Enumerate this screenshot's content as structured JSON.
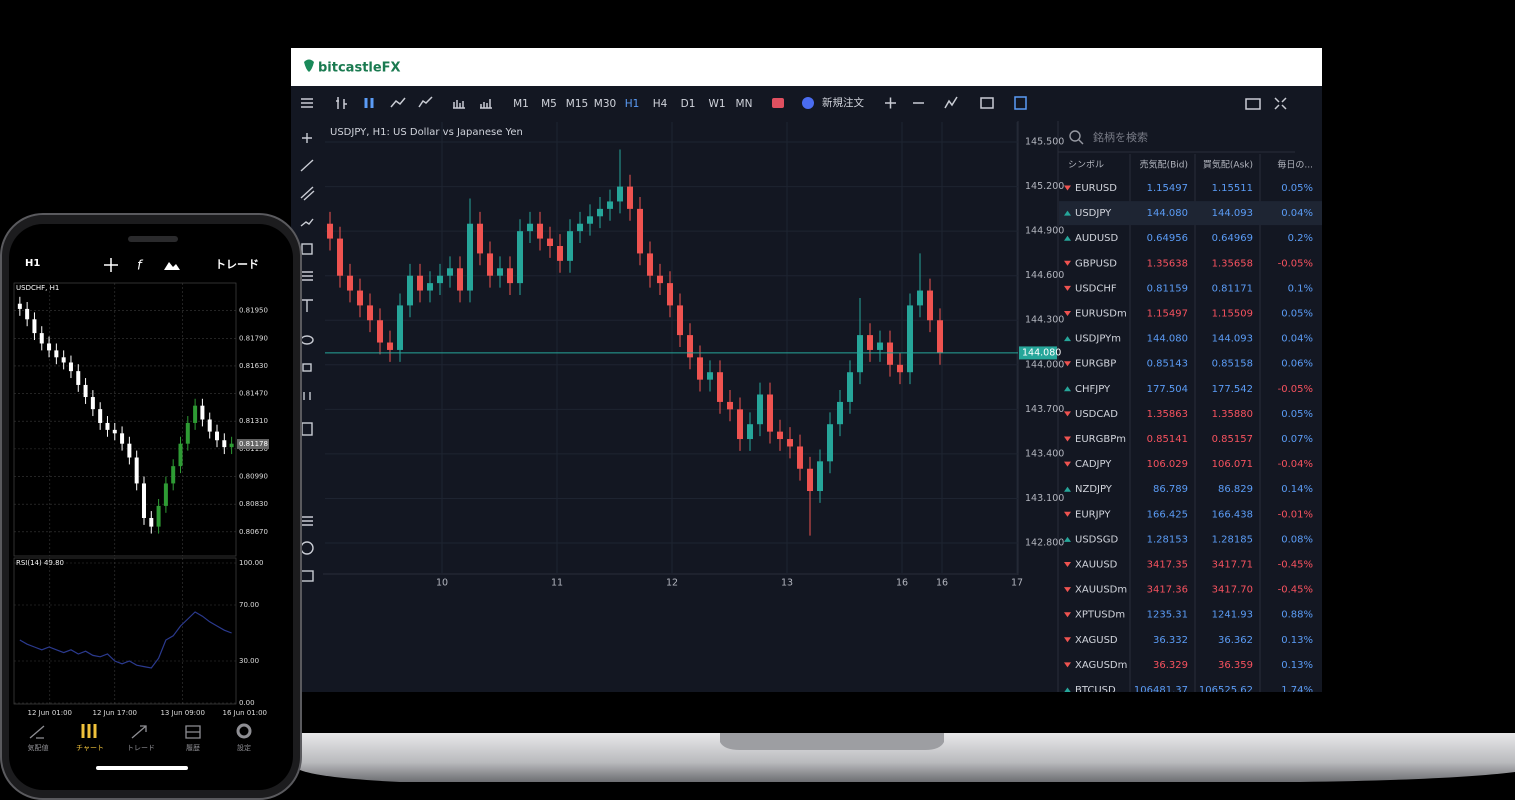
{
  "brand": "bitcastleFX",
  "toolbar": {
    "timeframes": [
      "M1",
      "M5",
      "M15",
      "M30",
      "H1",
      "H4",
      "D1",
      "W1",
      "MN"
    ],
    "active_timeframe": "H1",
    "new_order": "新規注文"
  },
  "chart_data": [
    {
      "type": "candlestick",
      "title": "USDJPY, H1: US Dollar vs Japanese Yen",
      "open": [
        144.95,
        144.85,
        144.6,
        144.5,
        144.4,
        144.3,
        144.15,
        144.1,
        144.4,
        144.6,
        144.5,
        144.55,
        144.6,
        144.65,
        144.5,
        144.95,
        144.75,
        144.6,
        144.65,
        144.55,
        144.9,
        144.95,
        144.85,
        144.8,
        144.7,
        144.9,
        144.95,
        145.0,
        145.05,
        145.1,
        145.2,
        145.05,
        144.75,
        144.6,
        144.55,
        144.4,
        144.2,
        144.05,
        143.9,
        143.95,
        143.75,
        143.7,
        143.5,
        143.6,
        143.8,
        143.55,
        143.5,
        143.45,
        143.3,
        143.15,
        143.35,
        143.6,
        143.75,
        143.95,
        144.2,
        144.1,
        144.15,
        144.0,
        143.95,
        144.4,
        144.5,
        144.3
      ],
      "high": [
        145.03,
        144.93,
        144.68,
        144.58,
        144.48,
        144.38,
        144.23,
        144.48,
        144.68,
        144.68,
        144.63,
        144.68,
        144.73,
        144.73,
        145.12,
        145.03,
        144.83,
        144.73,
        144.73,
        144.98,
        145.03,
        145.03,
        144.93,
        144.88,
        144.98,
        145.03,
        145.08,
        145.13,
        145.18,
        145.45,
        145.28,
        145.13,
        144.83,
        144.68,
        144.63,
        144.48,
        144.28,
        144.13,
        144.03,
        144.03,
        143.83,
        143.78,
        143.68,
        143.88,
        143.88,
        143.63,
        143.58,
        143.53,
        143.38,
        143.43,
        143.68,
        143.83,
        144.03,
        144.45,
        144.28,
        144.23,
        144.23,
        144.08,
        144.48,
        144.75,
        144.58,
        144.38
      ],
      "low": [
        144.77,
        144.52,
        144.42,
        144.32,
        144.22,
        144.07,
        144.02,
        144.02,
        144.32,
        144.42,
        144.42,
        144.47,
        144.52,
        144.42,
        144.42,
        144.67,
        144.52,
        144.52,
        144.47,
        144.47,
        144.82,
        144.77,
        144.72,
        144.62,
        144.62,
        144.82,
        144.87,
        144.92,
        144.97,
        145.02,
        144.97,
        144.67,
        144.52,
        144.47,
        144.32,
        144.12,
        143.97,
        143.82,
        143.82,
        143.67,
        143.62,
        143.42,
        143.42,
        143.52,
        143.47,
        143.42,
        143.37,
        143.22,
        142.85,
        143.07,
        143.27,
        143.52,
        143.67,
        143.87,
        144.02,
        144.02,
        143.92,
        143.87,
        143.87,
        144.32,
        144.22,
        144.0
      ],
      "close": [
        144.85,
        144.6,
        144.5,
        144.4,
        144.3,
        144.15,
        144.1,
        144.4,
        144.6,
        144.5,
        144.55,
        144.6,
        144.65,
        144.5,
        144.95,
        144.75,
        144.6,
        144.65,
        144.55,
        144.9,
        144.95,
        144.85,
        144.8,
        144.7,
        144.9,
        144.95,
        145.0,
        145.05,
        145.1,
        145.2,
        145.05,
        144.75,
        144.6,
        144.55,
        144.4,
        144.2,
        144.05,
        143.9,
        143.95,
        143.75,
        143.7,
        143.5,
        143.6,
        143.8,
        143.55,
        143.5,
        143.45,
        143.3,
        143.15,
        143.35,
        143.6,
        143.75,
        143.95,
        144.2,
        144.1,
        144.15,
        144.0,
        143.95,
        144.4,
        144.5,
        144.3,
        144.08
      ],
      "up_color": "#26a69a",
      "down_color": "#ef5350",
      "grid": true,
      "xlim": [
        -0.5,
        68.8
      ],
      "xticks": [
        {
          "value": 11.2,
          "label": "10"
        },
        {
          "value": 22.7,
          "label": "11"
        },
        {
          "value": 34.2,
          "label": "12"
        },
        {
          "value": 45.7,
          "label": "13"
        },
        {
          "value": 57.2,
          "label": "16"
        },
        {
          "value": 61.2,
          "label": "16"
        },
        {
          "value": 68.7,
          "label": "17"
        }
      ],
      "ylim": [
        142.598,
        145.635
      ],
      "yticks": [
        {
          "value": 142.8,
          "label": "142.800"
        },
        {
          "value": 143.1,
          "label": "143.100"
        },
        {
          "value": 143.4,
          "label": "143.400"
        },
        {
          "value": 143.7,
          "label": "143.700"
        },
        {
          "value": 144.0,
          "label": "144.000"
        },
        {
          "value": 144.3,
          "label": "144.300"
        },
        {
          "value": 144.6,
          "label": "144.600"
        },
        {
          "value": 144.9,
          "label": "144.900"
        },
        {
          "value": 145.2,
          "label": "145.200"
        },
        {
          "value": 145.5,
          "label": "145.500"
        }
      ],
      "last_price": {
        "value": 144.08,
        "label": "144.080"
      }
    },
    {
      "type": "candlestick",
      "title": "USDCHF, H1",
      "open": [
        0.8199,
        0.8196,
        0.819,
        0.8182,
        0.8176,
        0.8172,
        0.8168,
        0.8165,
        0.816,
        0.8152,
        0.8145,
        0.8138,
        0.813,
        0.8126,
        0.8124,
        0.8118,
        0.811,
        0.8095,
        0.8075,
        0.807,
        0.8082,
        0.8095,
        0.8105,
        0.8118,
        0.813,
        0.814,
        0.8132,
        0.8125,
        0.812,
        0.8116
      ],
      "high": [
        0.8203,
        0.82,
        0.8194,
        0.8186,
        0.818,
        0.8176,
        0.8172,
        0.8169,
        0.8164,
        0.8156,
        0.8149,
        0.8142,
        0.8134,
        0.813,
        0.8128,
        0.8122,
        0.8114,
        0.8099,
        0.8079,
        0.8086,
        0.8099,
        0.8109,
        0.8122,
        0.8134,
        0.8144,
        0.8144,
        0.8136,
        0.8129,
        0.8124,
        0.8122
      ],
      "low": [
        0.8192,
        0.8186,
        0.8178,
        0.8172,
        0.8168,
        0.8164,
        0.8161,
        0.8156,
        0.8148,
        0.8141,
        0.8134,
        0.8126,
        0.8122,
        0.812,
        0.8114,
        0.8106,
        0.8091,
        0.8071,
        0.8066,
        0.8066,
        0.8078,
        0.8091,
        0.8101,
        0.8114,
        0.8126,
        0.8128,
        0.8121,
        0.8116,
        0.8112,
        0.8112
      ],
      "close": [
        0.8196,
        0.819,
        0.8182,
        0.8176,
        0.8172,
        0.8168,
        0.8165,
        0.816,
        0.8152,
        0.8145,
        0.8138,
        0.813,
        0.8126,
        0.8124,
        0.8118,
        0.811,
        0.8095,
        0.8075,
        0.807,
        0.8082,
        0.8095,
        0.8105,
        0.8118,
        0.813,
        0.814,
        0.8132,
        0.8125,
        0.812,
        0.8116,
        0.8118
      ],
      "up_color": "#2e9b34",
      "down_color": "#ffffff",
      "grid": true,
      "xlim": [
        -0.8,
        29.6
      ],
      "xticks": [
        {
          "value": 4.1,
          "label": "12 Jun 01:00"
        },
        {
          "value": 13,
          "label": "12 Jun 17:00"
        },
        {
          "value": 22.3,
          "label": "13 Jun 09:00"
        },
        {
          "value": 30.8,
          "label": "16 Jun 01:00"
        }
      ],
      "ylim": [
        0.8053,
        0.8211
      ],
      "yticks": [
        {
          "value": 0.8067,
          "label": "0.80670"
        },
        {
          "value": 0.8083,
          "label": "0.80830"
        },
        {
          "value": 0.8099,
          "label": "0.80990"
        },
        {
          "value": 0.8115,
          "label": "0.81150"
        },
        {
          "value": 0.8131,
          "label": "0.81310"
        },
        {
          "value": 0.8147,
          "label": "0.81470"
        },
        {
          "value": 0.8163,
          "label": "0.81630"
        },
        {
          "value": 0.8179,
          "label": "0.81790"
        },
        {
          "value": 0.8195,
          "label": "0.81950"
        }
      ],
      "last_price": {
        "value": 0.81178,
        "label": "0.81178"
      }
    },
    {
      "type": "line",
      "title": "RSI(14) 49.80",
      "values": [
        45,
        42,
        40,
        38,
        40,
        38,
        36,
        38,
        35,
        37,
        34,
        33,
        35,
        30,
        28,
        30,
        27,
        26,
        25,
        32,
        45,
        48,
        55,
        60,
        65,
        62,
        58,
        55,
        52,
        50
      ],
      "color": "#2b3a8f",
      "xlim": [
        -0.8,
        29.6
      ],
      "ylim": [
        0,
        100
      ],
      "yticks": [
        {
          "value": 100,
          "label": "100.00"
        },
        {
          "value": 70,
          "label": "70.00"
        },
        {
          "value": 30,
          "label": "30.00"
        },
        {
          "value": 0,
          "label": "0.00"
        }
      ]
    }
  ],
  "phone": {
    "timeframe": "H1",
    "trade": "トレード",
    "tabs": [
      "気配値",
      "チャート",
      "トレード",
      "履歴",
      "設定"
    ],
    "active_tab": 1
  },
  "watchlist": {
    "search": "銘柄を検索",
    "columns": [
      "シンボル",
      "売気配(Bid)",
      "買気配(Ask)",
      "毎日の..."
    ],
    "selected_row": 1,
    "rows": [
      {
        "symbol": "EURUSD",
        "bid": "1.15497",
        "ask": "1.15511",
        "change": "0.05%",
        "trend": "down",
        "color": "#5b9cf6"
      },
      {
        "symbol": "USDJPY",
        "bid": "144.080",
        "ask": "144.093",
        "change": "0.04%",
        "trend": "up",
        "color": "#5b9cf6"
      },
      {
        "symbol": "AUDUSD",
        "bid": "0.64956",
        "ask": "0.64969",
        "change": "0.2%",
        "trend": "up",
        "color": "#5b9cf6"
      },
      {
        "symbol": "GBPUSD",
        "bid": "1.35638",
        "ask": "1.35658",
        "change": "-0.05%",
        "trend": "down",
        "color": "#f7525f"
      },
      {
        "symbol": "USDCHF",
        "bid": "0.81159",
        "ask": "0.81171",
        "change": "0.1%",
        "trend": "down",
        "color": "#5b9cf6"
      },
      {
        "symbol": "EURUSDm",
        "bid": "1.15497",
        "ask": "1.15509",
        "change": "0.05%",
        "trend": "down",
        "color": "#f7525f"
      },
      {
        "symbol": "USDJPYm",
        "bid": "144.080",
        "ask": "144.093",
        "change": "0.04%",
        "trend": "up",
        "color": "#5b9cf6"
      },
      {
        "symbol": "EURGBP",
        "bid": "0.85143",
        "ask": "0.85158",
        "change": "0.06%",
        "trend": "down",
        "color": "#5b9cf6"
      },
      {
        "symbol": "CHFJPY",
        "bid": "177.504",
        "ask": "177.542",
        "change": "-0.05%",
        "trend": "up",
        "color": "#5b9cf6"
      },
      {
        "symbol": "USDCAD",
        "bid": "1.35863",
        "ask": "1.35880",
        "change": "0.05%",
        "trend": "down",
        "color": "#f7525f"
      },
      {
        "symbol": "EURGBPm",
        "bid": "0.85141",
        "ask": "0.85157",
        "change": "0.07%",
        "trend": "down",
        "color": "#f7525f"
      },
      {
        "symbol": "CADJPY",
        "bid": "106.029",
        "ask": "106.071",
        "change": "-0.04%",
        "trend": "down",
        "color": "#f7525f"
      },
      {
        "symbol": "NZDJPY",
        "bid": "86.789",
        "ask": "86.829",
        "change": "0.14%",
        "trend": "up",
        "color": "#5b9cf6"
      },
      {
        "symbol": "EURJPY",
        "bid": "166.425",
        "ask": "166.438",
        "change": "-0.01%",
        "trend": "down",
        "color": "#5b9cf6"
      },
      {
        "symbol": "USDSGD",
        "bid": "1.28153",
        "ask": "1.28185",
        "change": "0.08%",
        "trend": "up",
        "color": "#5b9cf6"
      },
      {
        "symbol": "XAUUSD",
        "bid": "3417.35",
        "ask": "3417.71",
        "change": "-0.45%",
        "trend": "down",
        "color": "#f7525f"
      },
      {
        "symbol": "XAUUSDm",
        "bid": "3417.36",
        "ask": "3417.70",
        "change": "-0.45%",
        "trend": "down",
        "color": "#f7525f"
      },
      {
        "symbol": "XPTUSDm",
        "bid": "1235.31",
        "ask": "1241.93",
        "change": "0.88%",
        "trend": "down",
        "color": "#5b9cf6"
      },
      {
        "symbol": "XAGUSD",
        "bid": "36.332",
        "ask": "36.362",
        "change": "0.13%",
        "trend": "down",
        "color": "#5b9cf6"
      },
      {
        "symbol": "XAGUSDm",
        "bid": "36.329",
        "ask": "36.359",
        "change": "0.13%",
        "trend": "down",
        "color": "#f7525f"
      },
      {
        "symbol": "BTCUSD",
        "bid": "106481.37",
        "ask": "106525.62",
        "change": "1.74%",
        "trend": "up",
        "color": "#5b9cf6"
      }
    ]
  }
}
